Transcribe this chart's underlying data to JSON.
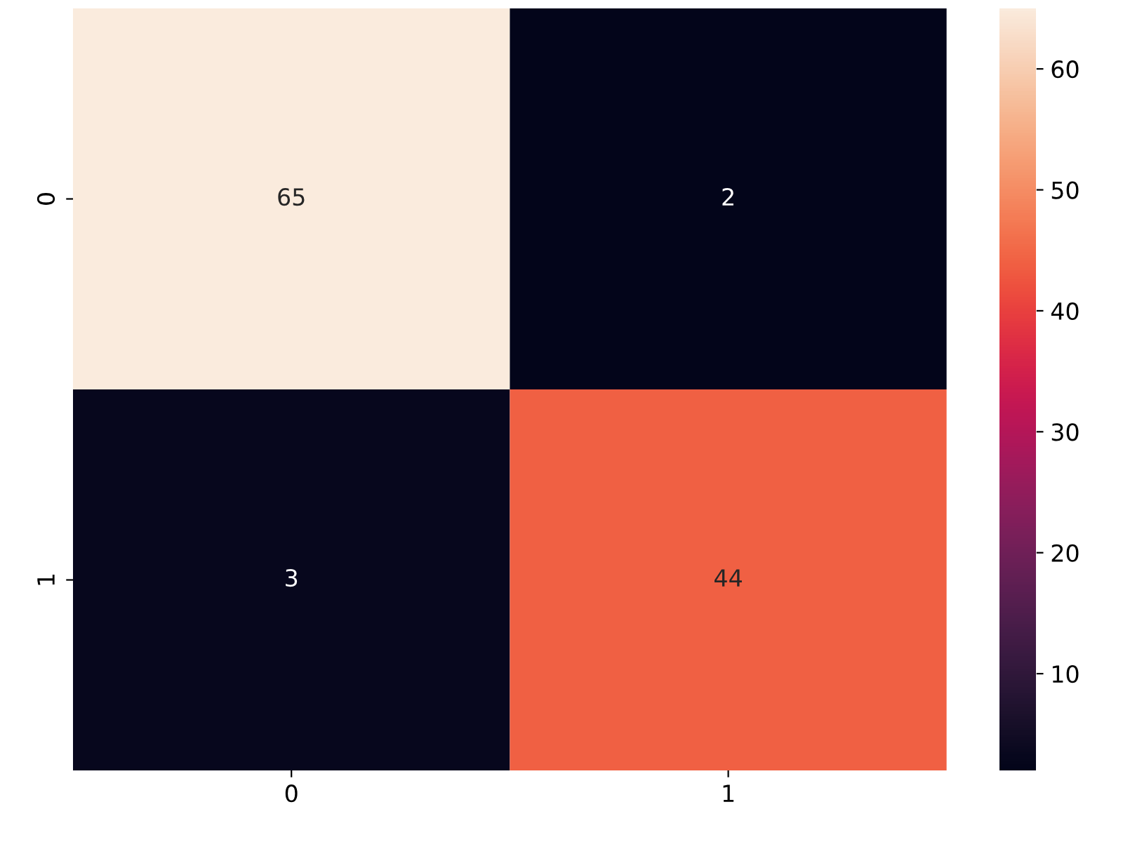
{
  "chart_data": {
    "type": "heatmap",
    "categories": [
      "0",
      "1"
    ],
    "y_categories": [
      "0",
      "1"
    ],
    "cells": [
      [
        65,
        2
      ],
      [
        3,
        44
      ]
    ],
    "data_labels": true,
    "clim": [
      2,
      65
    ],
    "cticks": [
      10,
      20,
      30,
      40,
      50,
      60
    ]
  }
}
